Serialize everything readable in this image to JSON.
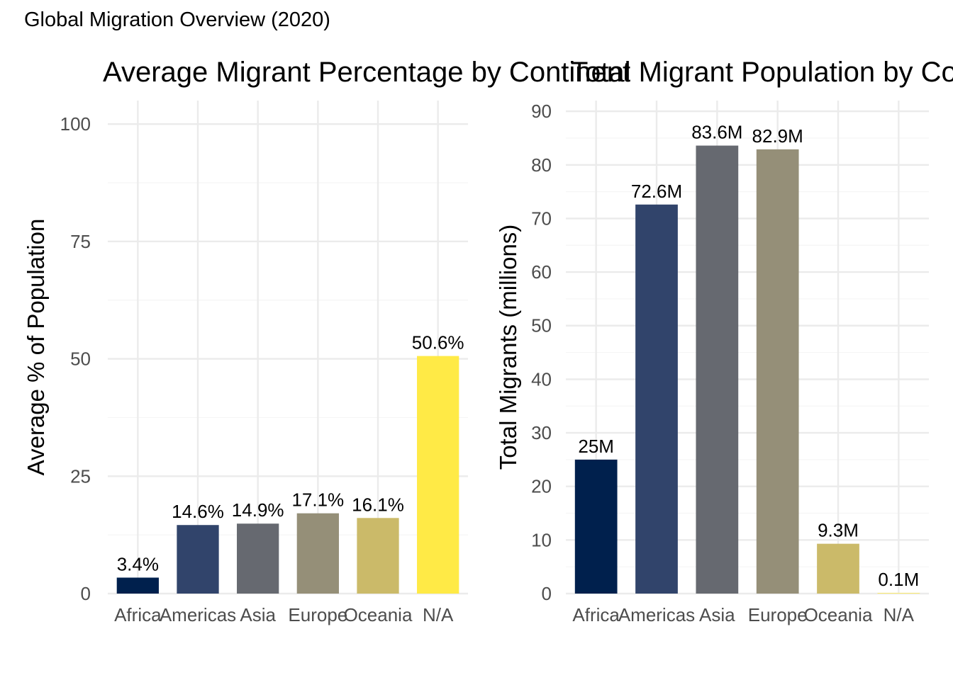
{
  "figure": {
    "title": "Global Migration Overview (2020)"
  },
  "colors": {
    "grid_major": "#ebebeb",
    "grid_minor": "#f5f5f5"
  },
  "chart_data": [
    {
      "type": "bar",
      "title": "Average Migrant Percentage by Continent",
      "xlabel": "",
      "ylabel": "Average % of Population",
      "ylim": [
        0,
        105
      ],
      "yticks": [
        0,
        25,
        50,
        75,
        100
      ],
      "grid": true,
      "legend": "none",
      "categories": [
        "Africa",
        "Americas",
        "Asia",
        "Europe",
        "Oceania",
        "N/A"
      ],
      "values": [
        3.4,
        14.6,
        14.9,
        17.1,
        16.1,
        50.6
      ],
      "labels": [
        "3.4%",
        "14.6%",
        "14.9%",
        "17.1%",
        "16.1%",
        "50.6%"
      ],
      "colors": [
        "#00204D",
        "#31446B",
        "#666970",
        "#958F78",
        "#CBBA69",
        "#FFEA46"
      ]
    },
    {
      "type": "bar",
      "title": "Total Migrant Population by Continent",
      "xlabel": "",
      "ylabel": "Total Migrants (millions)",
      "ylim": [
        0,
        92
      ],
      "yticks": [
        0,
        10,
        20,
        30,
        40,
        50,
        60,
        70,
        80,
        90
      ],
      "grid": true,
      "legend": "none",
      "categories": [
        "Africa",
        "Americas",
        "Asia",
        "Europe",
        "Oceania",
        "N/A"
      ],
      "values": [
        25,
        72.6,
        83.6,
        82.9,
        9.3,
        0.1
      ],
      "labels": [
        "25M",
        "72.6M",
        "83.6M",
        "82.9M",
        "9.3M",
        "0.1M"
      ],
      "colors": [
        "#00204D",
        "#31446B",
        "#666970",
        "#958F78",
        "#CBBA69",
        "#FFEA46"
      ]
    }
  ]
}
